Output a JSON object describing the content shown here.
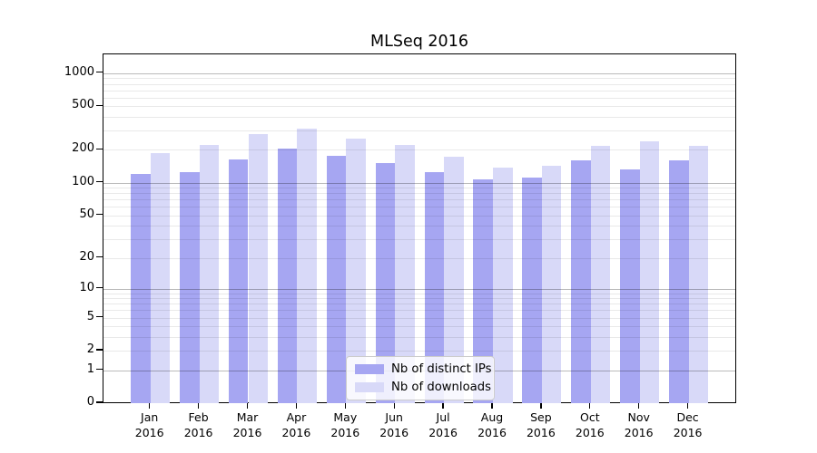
{
  "figure": {
    "title": "MLSeq 2016"
  },
  "chart_data": {
    "type": "bar",
    "title": "MLSeq 2016",
    "categories": [
      "Jan 2016",
      "Feb 2016",
      "Mar 2016",
      "Apr 2016",
      "May 2016",
      "Jun 2016",
      "Jul 2016",
      "Aug 2016",
      "Sep 2016",
      "Oct 2016",
      "Nov 2016",
      "Dec 2016"
    ],
    "series": [
      {
        "name": "Nb of distinct IPs",
        "color": "#a6a6f2",
        "values": [
          121,
          126,
          162,
          205,
          177,
          152,
          126,
          108,
          111,
          159,
          133,
          159
        ]
      },
      {
        "name": "Nb of downloads",
        "color": "#d8d9f8",
        "values": [
          188,
          221,
          281,
          310,
          255,
          222,
          174,
          138,
          144,
          219,
          241,
          216
        ]
      }
    ],
    "xlabel": "",
    "ylabel": "",
    "y_scale": "log10(value+1)",
    "y_ticks": [
      1000,
      500,
      200,
      100,
      50,
      20,
      10,
      5,
      2,
      1,
      0
    ],
    "ylim": [
      0,
      1475
    ],
    "grid": "horizontal major (powers of 10) + minor lines, drawn over bars",
    "legend_position": "inside bottom-center",
    "frame": "full black box"
  }
}
